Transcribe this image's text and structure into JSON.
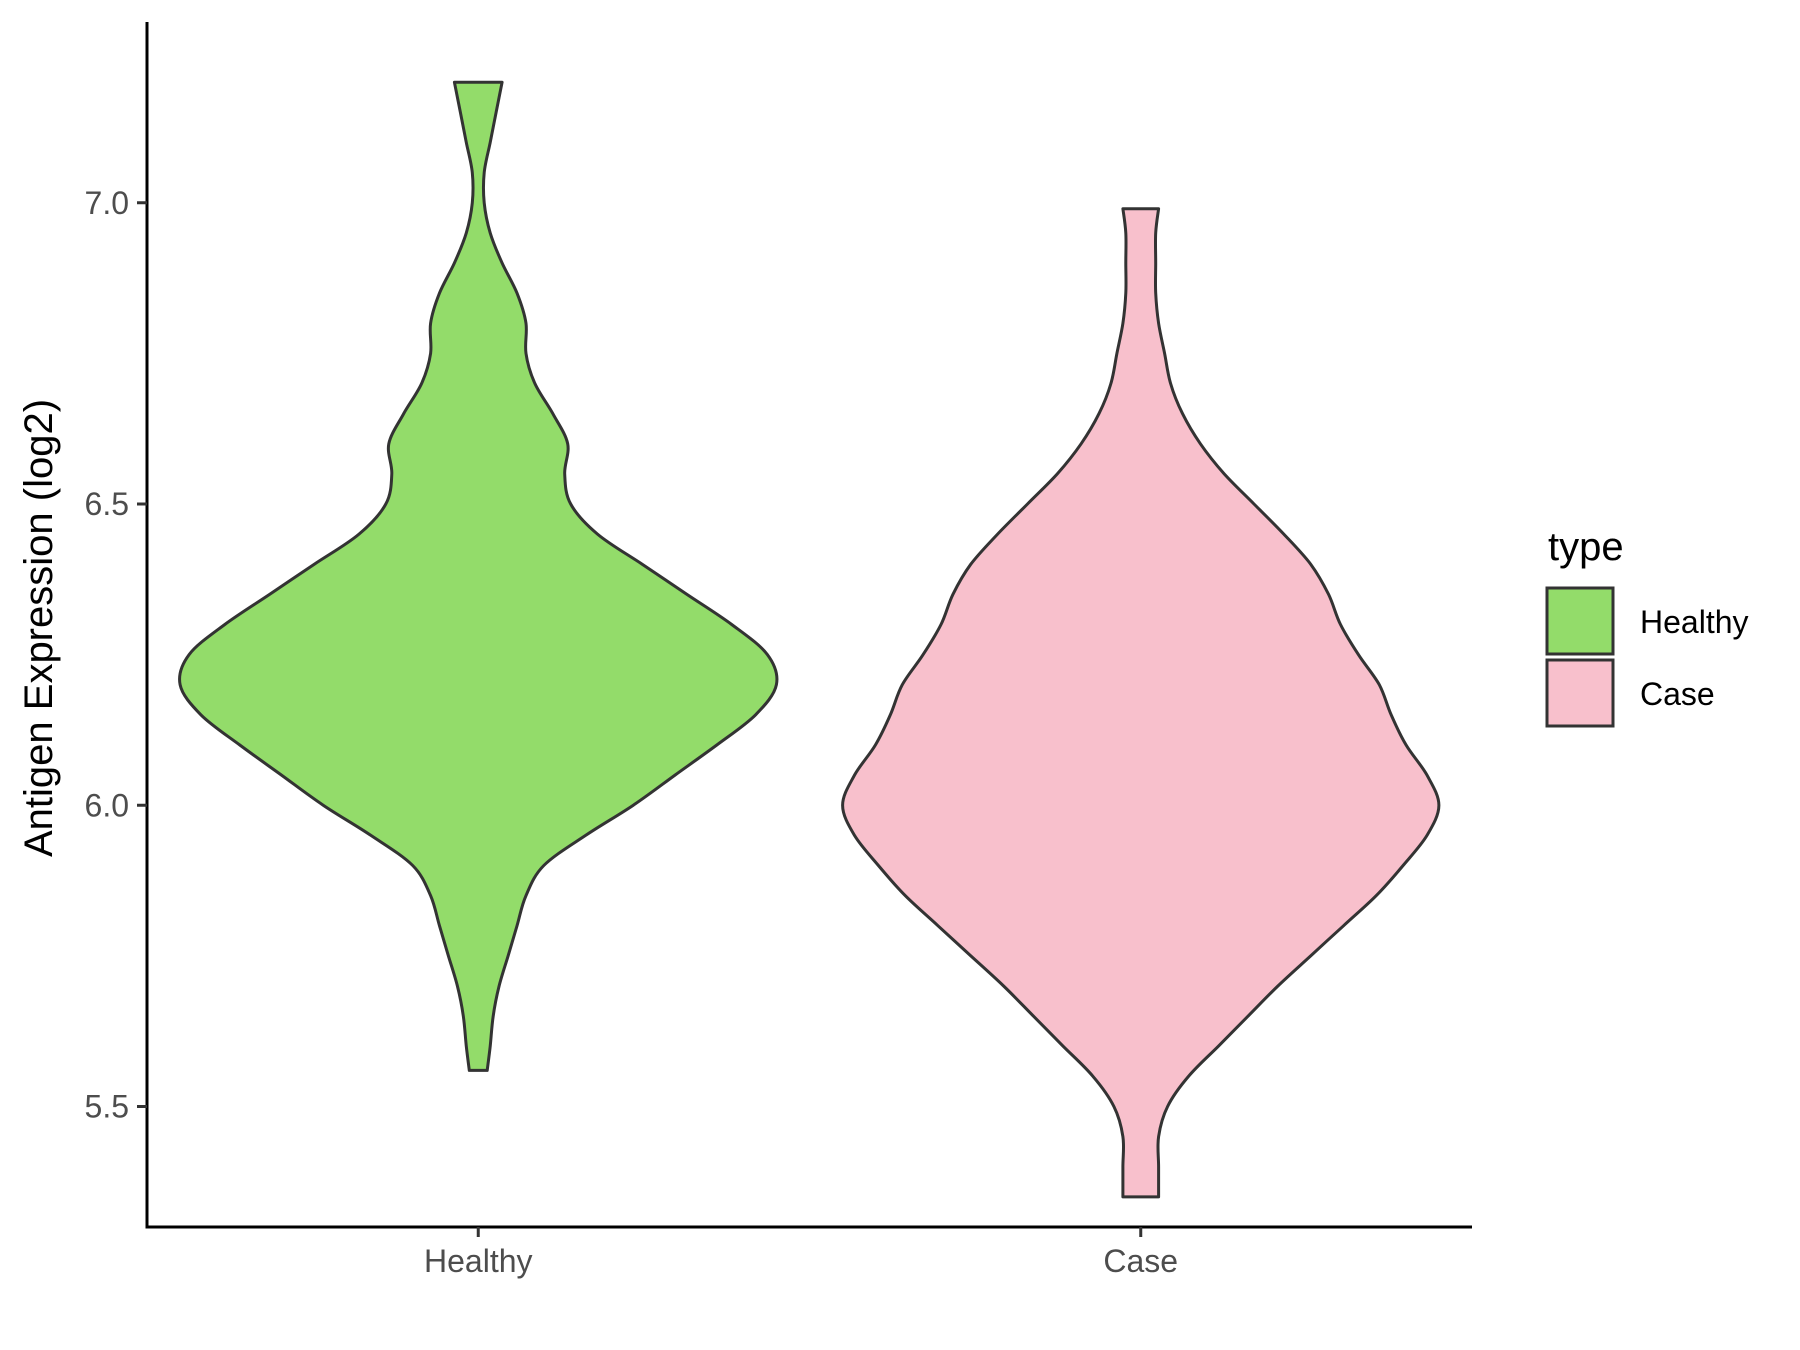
{
  "chart_data": {
    "type": "violin",
    "title": "",
    "xlabel": "",
    "ylabel": "Antigen Expression (log2)",
    "ylim": [
      5.3,
      7.3
    ],
    "yticks": [
      "5.5",
      "6.0",
      "6.5",
      "7.0"
    ],
    "grid": false,
    "legend": {
      "title": "type",
      "position": "right",
      "entries": [
        "Healthy",
        "Case"
      ]
    },
    "categories": [
      "Healthy",
      "Case"
    ],
    "series": [
      {
        "name": "Healthy",
        "color": "#93DC6A",
        "y_min": 5.56,
        "y_max": 7.2,
        "density_profile": [
          [
            5.56,
            0.03
          ],
          [
            5.6,
            0.04
          ],
          [
            5.65,
            0.05
          ],
          [
            5.7,
            0.07
          ],
          [
            5.75,
            0.1
          ],
          [
            5.8,
            0.13
          ],
          [
            5.85,
            0.16
          ],
          [
            5.9,
            0.22
          ],
          [
            5.95,
            0.36
          ],
          [
            6.0,
            0.52
          ],
          [
            6.05,
            0.66
          ],
          [
            6.1,
            0.8
          ],
          [
            6.15,
            0.93
          ],
          [
            6.2,
            1.0
          ],
          [
            6.25,
            0.97
          ],
          [
            6.3,
            0.85
          ],
          [
            6.35,
            0.7
          ],
          [
            6.4,
            0.55
          ],
          [
            6.45,
            0.4
          ],
          [
            6.5,
            0.31
          ],
          [
            6.55,
            0.29
          ],
          [
            6.6,
            0.3
          ],
          [
            6.65,
            0.25
          ],
          [
            6.7,
            0.19
          ],
          [
            6.75,
            0.16
          ],
          [
            6.8,
            0.16
          ],
          [
            6.85,
            0.13
          ],
          [
            6.9,
            0.08
          ],
          [
            6.95,
            0.04
          ],
          [
            7.0,
            0.02
          ],
          [
            7.05,
            0.02
          ],
          [
            7.1,
            0.04
          ],
          [
            7.15,
            0.06
          ],
          [
            7.2,
            0.08
          ]
        ]
      },
      {
        "name": "Case",
        "color": "#F8C0CC",
        "y_min": 5.35,
        "y_max": 6.99,
        "density_profile": [
          [
            5.35,
            0.06
          ],
          [
            5.4,
            0.06
          ],
          [
            5.45,
            0.06
          ],
          [
            5.5,
            0.09
          ],
          [
            5.55,
            0.16
          ],
          [
            5.6,
            0.26
          ],
          [
            5.65,
            0.36
          ],
          [
            5.7,
            0.46
          ],
          [
            5.75,
            0.57
          ],
          [
            5.8,
            0.68
          ],
          [
            5.85,
            0.79
          ],
          [
            5.9,
            0.88
          ],
          [
            5.95,
            0.96
          ],
          [
            6.0,
            1.0
          ],
          [
            6.05,
            0.96
          ],
          [
            6.1,
            0.89
          ],
          [
            6.15,
            0.84
          ],
          [
            6.2,
            0.8
          ],
          [
            6.25,
            0.73
          ],
          [
            6.3,
            0.67
          ],
          [
            6.35,
            0.63
          ],
          [
            6.4,
            0.57
          ],
          [
            6.45,
            0.48
          ],
          [
            6.5,
            0.38
          ],
          [
            6.55,
            0.28
          ],
          [
            6.6,
            0.2
          ],
          [
            6.65,
            0.14
          ],
          [
            6.7,
            0.1
          ],
          [
            6.75,
            0.08
          ],
          [
            6.8,
            0.06
          ],
          [
            6.85,
            0.05
          ],
          [
            6.9,
            0.05
          ],
          [
            6.95,
            0.05
          ],
          [
            6.99,
            0.06
          ]
        ]
      }
    ]
  }
}
